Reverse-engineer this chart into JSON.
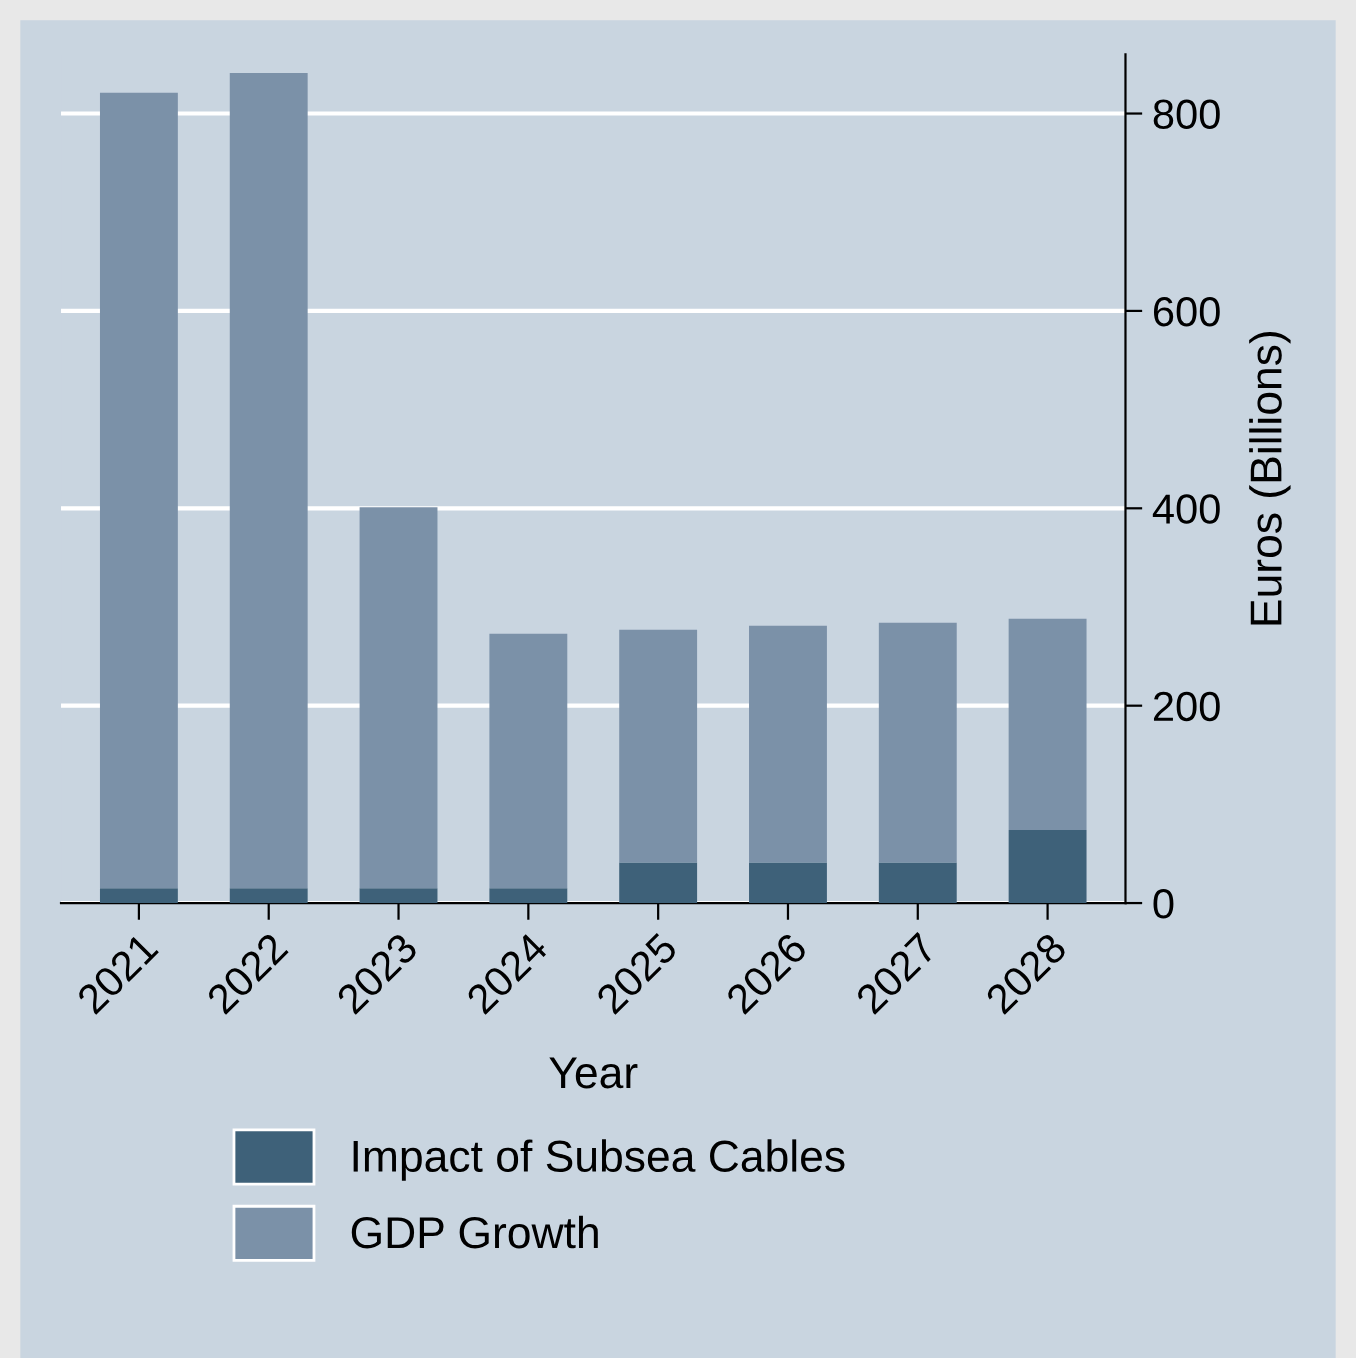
{
  "chart_data": {
    "type": "bar",
    "stacked": true,
    "categories": [
      "2021",
      "2022",
      "2023",
      "2024",
      "2025",
      "2026",
      "2027",
      "2028"
    ],
    "series": [
      {
        "name": "Impact of Subsea Cables",
        "color": "#3e6179",
        "values": [
          15,
          15,
          15,
          15,
          41,
          41,
          41,
          74
        ]
      },
      {
        "name": "GDP Growth",
        "color": "#7b91a8",
        "values": [
          806,
          826,
          386,
          258,
          236,
          240,
          243,
          214
        ]
      }
    ],
    "xlabel": "Year",
    "ylabel": "Euros (Billions)",
    "ylim": [
      0,
      860
    ],
    "yticks": [
      0,
      200,
      400,
      600,
      800
    ],
    "grid": "y",
    "legend": "bottom"
  }
}
